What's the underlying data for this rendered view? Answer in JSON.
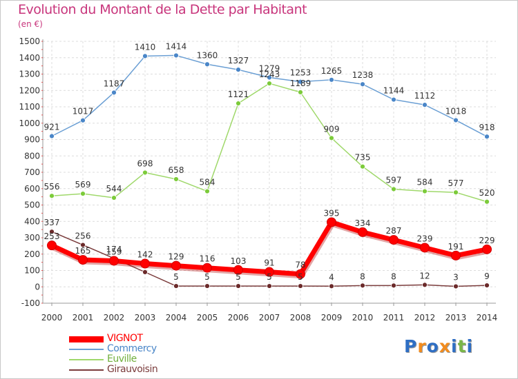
{
  "title": "Evolution du Montant de la Dette par Habitant",
  "unit_label": "(en €)",
  "logo": {
    "letters": [
      "P",
      "r",
      "o",
      "x",
      "i",
      "t",
      "i"
    ],
    "colors": [
      "#2f6fc4",
      "#f28c1e",
      "#2f6fc4",
      "#f28c1e",
      "#2f6fc4",
      "#7ab648",
      "#2f6fc4"
    ]
  },
  "chart_data": {
    "type": "line",
    "title": "Evolution du Montant de la Dette par Habitant",
    "ylabel": "(en €)",
    "xlabel": "",
    "x": [
      "2000",
      "2001",
      "2002",
      "2003",
      "2004",
      "2005",
      "2006",
      "2007",
      "2008",
      "2009",
      "2010",
      "2011",
      "2012",
      "2013",
      "2014"
    ],
    "ylim": [
      -100,
      1500
    ],
    "yticks": [
      -100,
      0,
      100,
      200,
      300,
      400,
      500,
      600,
      700,
      800,
      900,
      1000,
      1100,
      1200,
      1300,
      1400,
      1500
    ],
    "grid": true,
    "legend_position": "bottom-left",
    "series": [
      {
        "name": "VIGNOT",
        "color": "#ff0000",
        "emphasis": true,
        "values": [
          253,
          165,
          159,
          142,
          129,
          116,
          103,
          91,
          78,
          395,
          334,
          287,
          239,
          191,
          229
        ]
      },
      {
        "name": "Commercy",
        "color": "#6b9fd4",
        "values": [
          921,
          1017,
          1187,
          1410,
          1414,
          1360,
          1327,
          1279,
          1253,
          1265,
          1238,
          1144,
          1112,
          1018,
          918
        ]
      },
      {
        "name": "Euville",
        "color": "#9fd86a",
        "values": [
          556,
          569,
          544,
          698,
          658,
          584,
          1121,
          1243,
          1189,
          909,
          735,
          597,
          584,
          577,
          520
        ]
      },
      {
        "name": "Girauvoisin",
        "color": "#7a3b3b",
        "values": [
          337,
          256,
          174,
          90,
          5,
          5,
          5,
          5,
          5,
          4,
          8,
          8,
          12,
          3,
          9
        ],
        "labels": [
          "337",
          "256",
          "174",
          "",
          "5",
          "5",
          "5",
          "5",
          "5",
          "4",
          "8",
          "8",
          "12",
          "3",
          "9"
        ]
      }
    ]
  }
}
